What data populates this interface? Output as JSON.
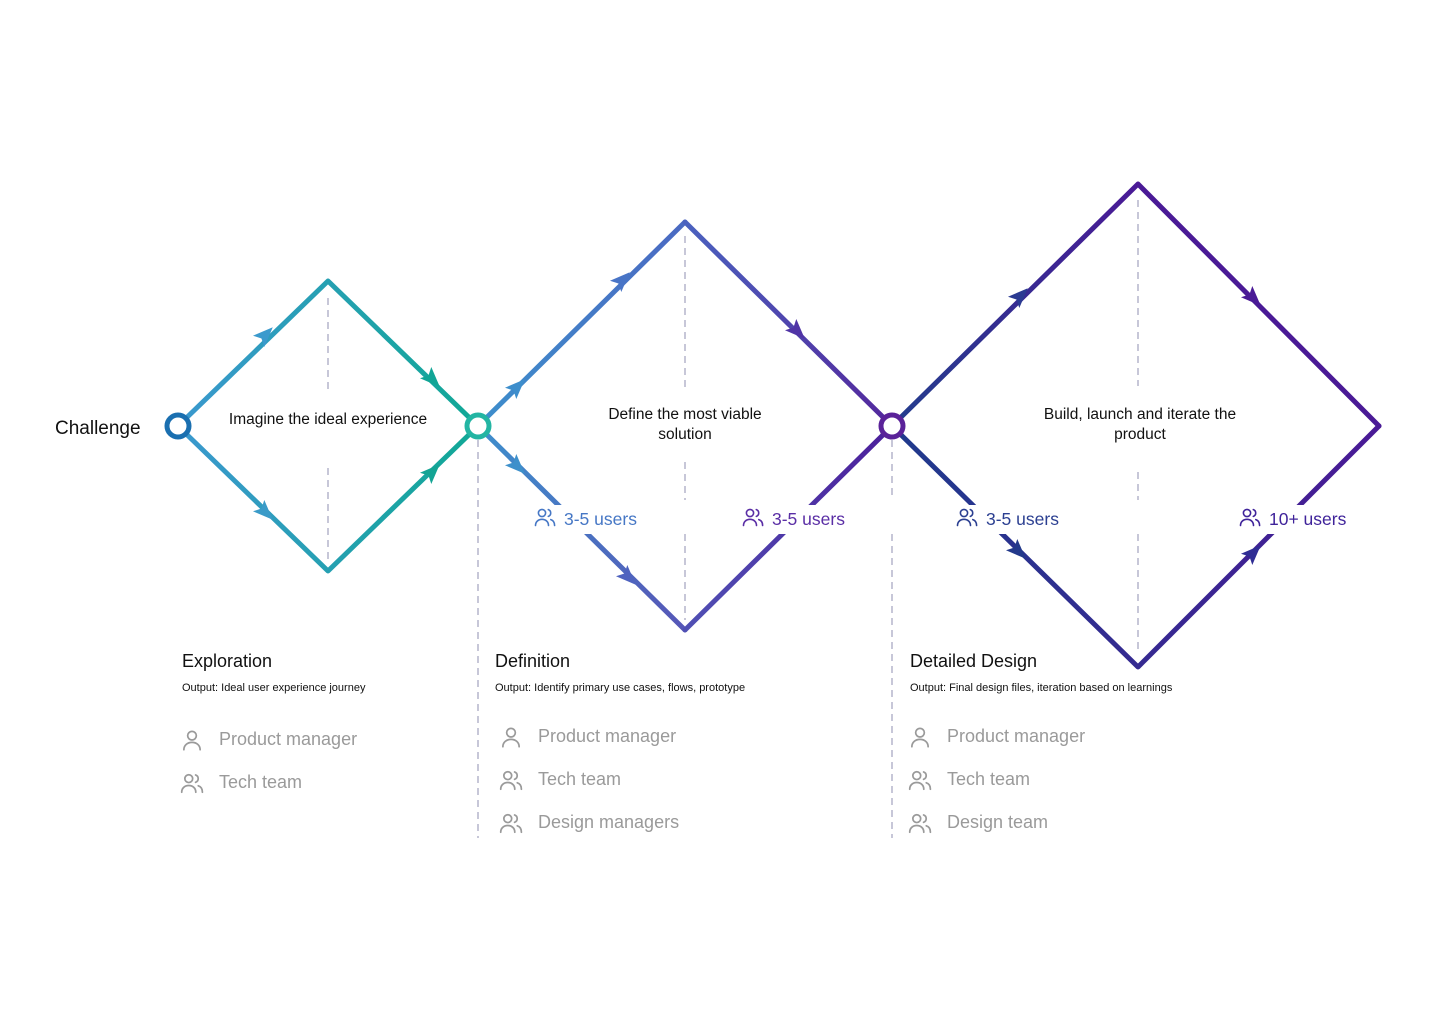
{
  "start_label": "Challenge",
  "colors": {
    "teal": "#12a79a",
    "sky": "#3797cf",
    "blue": "#4c6cc4",
    "violet": "#5b2fa6",
    "navy": "#233a8c",
    "purple": "#4a1a97",
    "gray_text": "#9a9a9a",
    "dash": "#a9a9c2"
  },
  "diamonds": [
    {
      "label": "Imagine the ideal experience"
    },
    {
      "label": "Define the most viable solution"
    },
    {
      "label": "Build, launch and iterate the product"
    }
  ],
  "user_badges": [
    {
      "text": "3-5 users",
      "color": "#4677c5"
    },
    {
      "text": "3-5 users",
      "color": "#5a2ea5"
    },
    {
      "text": "3-5 users",
      "color": "#2b3f91"
    },
    {
      "text": "10+ users",
      "color": "#3f239a"
    }
  ],
  "phases": [
    {
      "title": "Exploration",
      "output": "Output: Ideal user experience journey",
      "roles": [
        {
          "label": "Product manager",
          "icon": "person-icon"
        },
        {
          "label": "Tech team",
          "icon": "group-icon"
        }
      ]
    },
    {
      "title": "Definition",
      "output": "Output: Identify primary use cases, flows, prototype",
      "roles": [
        {
          "label": "Product manager",
          "icon": "person-icon"
        },
        {
          "label": "Tech team",
          "icon": "group-icon"
        },
        {
          "label": "Design managers",
          "icon": "group-icon"
        }
      ]
    },
    {
      "title": "Detailed Design",
      "output": "Output: Final design files, iteration based on learnings",
      "roles": [
        {
          "label": "Product manager",
          "icon": "person-icon"
        },
        {
          "label": "Tech team",
          "icon": "group-icon"
        },
        {
          "label": "Design team",
          "icon": "group-icon"
        }
      ]
    }
  ]
}
